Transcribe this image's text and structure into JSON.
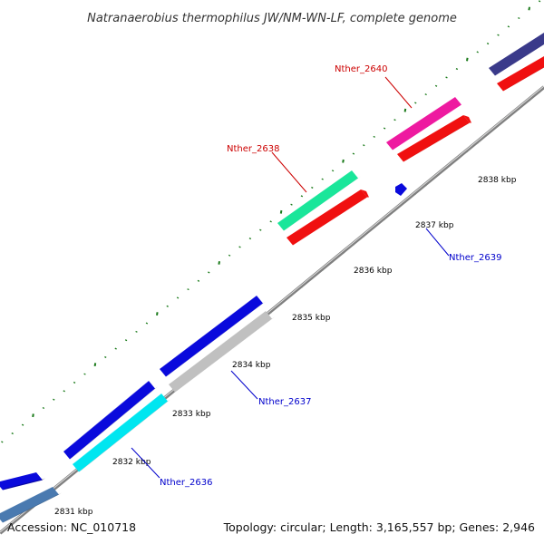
{
  "title": "Natranaerobius thermophilus JW/NM-WN-LF, complete genome",
  "footer": {
    "accession": "Accession: NC_010718",
    "summary": "Topology: circular; Length: 3,165,557 bp; Genes: 2,946"
  },
  "ticks": [
    {
      "label": "2831 kbp"
    },
    {
      "label": "2832 kbp"
    },
    {
      "label": "2833 kbp"
    },
    {
      "label": "2834 kbp"
    },
    {
      "label": "2835 kbp"
    },
    {
      "label": "2836 kbp"
    },
    {
      "label": "2837 kbp"
    },
    {
      "label": "2838 kbp"
    }
  ],
  "gene_labels": [
    {
      "text": "Nther_2636",
      "strand": "reverse"
    },
    {
      "text": "Nther_2637",
      "strand": "reverse"
    },
    {
      "text": "Nther_2638",
      "strand": "forward"
    },
    {
      "text": "Nther_2639",
      "strand": "reverse"
    },
    {
      "text": "Nther_2640",
      "strand": "forward"
    }
  ],
  "colors": {
    "backbone": "#808080",
    "tick": "#1a7a1a",
    "forward_label": "#cc0000",
    "reverse_label": "#0000cc",
    "cds_blue": "#0a0adc",
    "steelblue": "#4a7ab0",
    "cyan": "#00e6f0",
    "gray": "#c0c0c0",
    "green": "#1ae69a",
    "red": "#f01010",
    "pink": "#ee1aa0",
    "navy": "#3a3a8a"
  }
}
